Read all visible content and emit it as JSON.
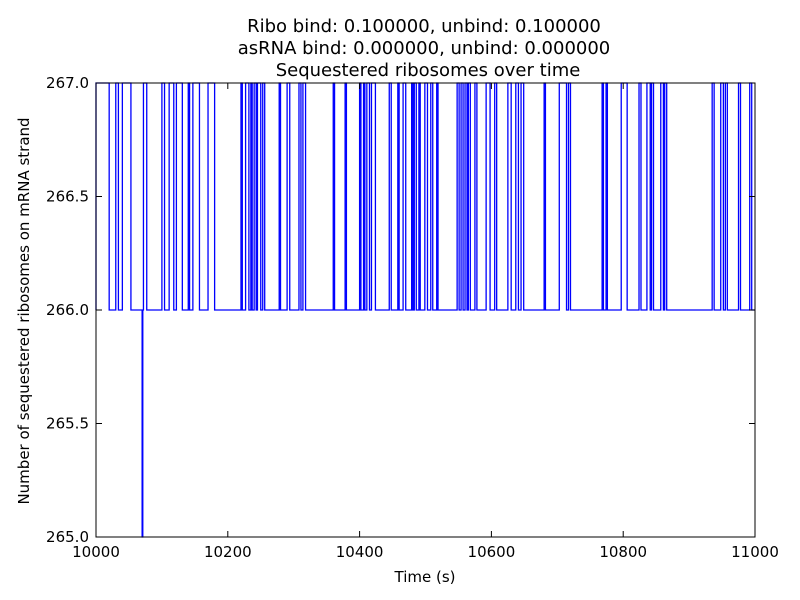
{
  "chart_data": {
    "type": "line",
    "title_lines": [
      "Ribo bind: 0.100000, unbind: 0.100000",
      "asRNA bind: 0.000000, unbind: 0.000000",
      "Sequestered ribosomes over time"
    ],
    "xlabel": "Time (s)",
    "ylabel": "Number of sequestered ribosomes on mRNA strand",
    "xlim": [
      10000,
      11000
    ],
    "ylim": [
      265.0,
      267.0
    ],
    "xticks": [
      10000,
      10200,
      10400,
      10600,
      10800,
      11000
    ],
    "xtick_labels": [
      "10000",
      "10200",
      "10400",
      "10600",
      "10800",
      "11000"
    ],
    "yticks": [
      265.0,
      265.5,
      266.0,
      266.5,
      267.0
    ],
    "ytick_labels": [
      "265.0",
      "265.5",
      "266.0",
      "266.5",
      "267.0"
    ],
    "grid": false,
    "series": [
      {
        "color": "#0000ff",
        "baseline": 266,
        "pulses_at_267": [
          [
            10000,
            10020
          ],
          [
            10030,
            10034
          ],
          [
            10040,
            10053
          ],
          [
            10072,
            10077
          ],
          [
            10100,
            10104
          ],
          [
            10111,
            10118
          ],
          [
            10122,
            10131
          ],
          [
            10140,
            10142
          ],
          [
            10147,
            10157
          ],
          [
            10170,
            10180
          ],
          [
            10220,
            10222
          ],
          [
            10227,
            10232
          ],
          [
            10235,
            10237
          ],
          [
            10240,
            10243
          ],
          [
            10245,
            10250
          ],
          [
            10253,
            10256
          ],
          [
            10278,
            10280
          ],
          [
            10290,
            10294
          ],
          [
            10308,
            10311
          ],
          [
            10314,
            10318
          ],
          [
            10360,
            10362
          ],
          [
            10378,
            10380
          ],
          [
            10400,
            10402
          ],
          [
            10406,
            10408
          ],
          [
            10411,
            10415
          ],
          [
            10418,
            10424
          ],
          [
            10445,
            10448
          ],
          [
            10458,
            10460
          ],
          [
            10466,
            10470
          ],
          [
            10479,
            10481
          ],
          [
            10483,
            10486
          ],
          [
            10490,
            10492
          ],
          [
            10499,
            10503
          ],
          [
            10508,
            10511
          ],
          [
            10517,
            10519
          ],
          [
            10548,
            10551
          ],
          [
            10554,
            10557
          ],
          [
            10560,
            10563
          ],
          [
            10565,
            10568
          ],
          [
            10575,
            10578
          ],
          [
            10592,
            10598
          ],
          [
            10605,
            10608
          ],
          [
            10625,
            10630
          ],
          [
            10637,
            10641
          ],
          [
            10645,
            10649
          ],
          [
            10680,
            10682
          ],
          [
            10703,
            10714
          ],
          [
            10717,
            10720
          ],
          [
            10768,
            10770
          ],
          [
            10774,
            10776
          ],
          [
            10797,
            10806
          ],
          [
            10824,
            10827
          ],
          [
            10836,
            10841
          ],
          [
            10843,
            10846
          ],
          [
            10857,
            10861
          ],
          [
            10863,
            10866
          ],
          [
            10935,
            10938
          ],
          [
            10948,
            10952
          ],
          [
            10955,
            10958
          ],
          [
            10975,
            10978
          ],
          [
            10992,
            10995
          ]
        ],
        "drops_to_265": [
          [
            10070,
            10071
          ]
        ]
      }
    ]
  }
}
